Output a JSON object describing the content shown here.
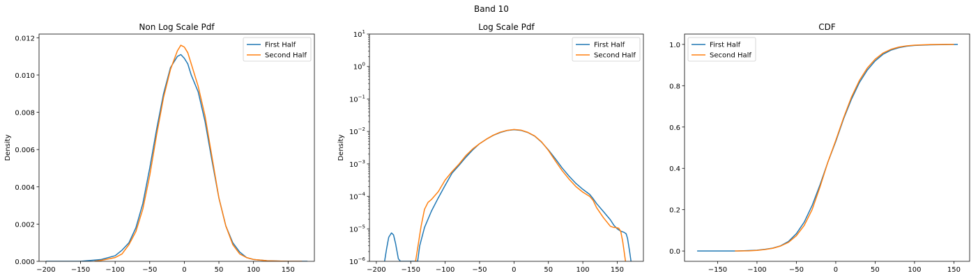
{
  "figure": {
    "suptitle": "Band 10"
  },
  "colors": {
    "first_half": "#1f77b4",
    "second_half": "#ff7f0e"
  },
  "chart_data": [
    {
      "type": "line",
      "title": "Non Log Scale Pdf",
      "xlabel": "",
      "ylabel": "Density",
      "xlim": [
        -210,
        188
      ],
      "ylim": [
        0,
        0.0122
      ],
      "yscale": "linear",
      "xticks": [
        -200,
        -150,
        -100,
        -50,
        0,
        50,
        100,
        150
      ],
      "yticks": [
        0,
        0.002,
        0.004,
        0.006,
        0.008,
        0.01,
        0.012
      ],
      "ytick_labels": [
        "0.000",
        "0.002",
        "0.004",
        "0.006",
        "0.008",
        "0.010",
        "0.012"
      ],
      "legend": "top-right",
      "series": [
        {
          "name": "First Half",
          "color": "#1f77b4",
          "x": [
            -200,
            -150,
            -120,
            -100,
            -90,
            -80,
            -70,
            -60,
            -50,
            -40,
            -30,
            -20,
            -10,
            -5,
            0,
            5,
            10,
            20,
            30,
            40,
            50,
            60,
            70,
            80,
            90,
            100,
            120,
            150,
            178
          ],
          "y": [
            0.0,
            0.0,
            0.0001,
            0.0003,
            0.0006,
            0.001,
            0.0018,
            0.0031,
            0.005,
            0.0071,
            0.009,
            0.0104,
            0.011,
            0.0111,
            0.0109,
            0.0106,
            0.01,
            0.0091,
            0.0075,
            0.0054,
            0.0034,
            0.0019,
            0.001,
            0.0005,
            0.0002,
            0.0001,
            3e-05,
            0.0,
            0.0
          ]
        },
        {
          "name": "Second Half",
          "color": "#ff7f0e",
          "x": [
            -130,
            -120,
            -100,
            -90,
            -80,
            -70,
            -60,
            -50,
            -40,
            -30,
            -20,
            -10,
            -5,
            0,
            5,
            10,
            20,
            30,
            40,
            50,
            60,
            70,
            80,
            90,
            100,
            120,
            150,
            170
          ],
          "y": [
            0.0,
            5e-05,
            0.0002,
            0.0004,
            0.0009,
            0.0016,
            0.0028,
            0.0046,
            0.0068,
            0.0088,
            0.0103,
            0.0113,
            0.0116,
            0.0115,
            0.0112,
            0.0106,
            0.0094,
            0.0078,
            0.0056,
            0.0034,
            0.0019,
            0.0009,
            0.0004,
            0.0002,
            0.0001,
            3e-05,
            0.0,
            0.0
          ]
        }
      ]
    },
    {
      "type": "line",
      "title": "Log Scale Pdf",
      "xlabel": "",
      "ylabel": "Density",
      "xlim": [
        -210,
        188
      ],
      "ylim": [
        1e-06,
        10
      ],
      "yscale": "log",
      "xticks": [
        -200,
        -150,
        -100,
        -50,
        0,
        50,
        100,
        150
      ],
      "ytick_exponents": [
        -6,
        -5,
        -4,
        -3,
        -2,
        -1,
        0,
        1
      ],
      "ytick_base": "10",
      "legend": "top-right",
      "series": [
        {
          "name": "First Half",
          "color": "#1f77b4",
          "x": [
            -188,
            -185,
            -182,
            -178,
            -175,
            -172,
            -168,
            -165,
            -140,
            -137,
            -130,
            -120,
            -110,
            -100,
            -90,
            -80,
            -70,
            -60,
            -50,
            -40,
            -30,
            -20,
            -10,
            0,
            10,
            20,
            30,
            40,
            50,
            60,
            70,
            80,
            90,
            100,
            110,
            115,
            120,
            130,
            140,
            145,
            150,
            155,
            160,
            163,
            165,
            168,
            170
          ],
          "y": [
            1e-06,
            2.5e-06,
            5.5e-06,
            7.5e-06,
            6.5e-06,
            3.5e-06,
            1.2e-06,
            1e-06,
            1e-06,
            3e-06,
            1.1e-05,
            3.5e-05,
            9e-05,
            0.00022,
            0.00052,
            0.0009,
            0.0016,
            0.0027,
            0.0042,
            0.0058,
            0.0076,
            0.0093,
            0.0107,
            0.0113,
            0.0108,
            0.0093,
            0.0072,
            0.0047,
            0.0027,
            0.00145,
            0.00075,
            0.00042,
            0.00025,
            0.000165,
            0.000115,
            8.5e-05,
            6e-05,
            3.4e-05,
            1.9e-05,
            1.3e-05,
            1e-05,
            8.5e-06,
            7.8e-06,
            7e-06,
            5e-06,
            2e-06,
            1e-06
          ]
        },
        {
          "name": "Second Half",
          "color": "#ff7f0e",
          "x": [
            -143,
            -140,
            -135,
            -130,
            -125,
            -120,
            -110,
            -100,
            -90,
            -80,
            -70,
            -60,
            -50,
            -40,
            -30,
            -20,
            -10,
            0,
            10,
            20,
            30,
            40,
            50,
            60,
            70,
            80,
            90,
            100,
            110,
            115,
            120,
            130,
            140,
            145,
            148,
            152,
            155,
            158,
            160,
            162
          ],
          "y": [
            1e-06,
            2.5e-06,
            1.2e-05,
            4e-05,
            6.5e-05,
            8e-05,
            0.00014,
            0.00032,
            0.00058,
            0.00098,
            0.0018,
            0.0029,
            0.0042,
            0.0058,
            0.0077,
            0.0095,
            0.0108,
            0.0115,
            0.011,
            0.0094,
            0.0073,
            0.0048,
            0.0026,
            0.00125,
            0.00062,
            0.00034,
            0.0002,
            0.000135,
            0.0001,
            7.5e-05,
            4.5e-05,
            2.2e-05,
            1.2e-05,
            1.1e-05,
            1.1e-05,
            1.05e-05,
            8.5e-06,
            4e-06,
            2e-06,
            1e-06
          ]
        }
      ]
    },
    {
      "type": "line",
      "title": "CDF",
      "xlabel": "",
      "ylabel": "",
      "xlim": [
        -192,
        170
      ],
      "ylim": [
        -0.05,
        1.05
      ],
      "yscale": "linear",
      "xticks": [
        -150,
        -100,
        -50,
        0,
        50,
        100,
        150
      ],
      "yticks": [
        0.0,
        0.2,
        0.4,
        0.6,
        0.8,
        1.0
      ],
      "ytick_labels": [
        "0.0",
        "0.2",
        "0.4",
        "0.6",
        "0.8",
        "1.0"
      ],
      "legend": "top-left",
      "series": [
        {
          "name": "First Half",
          "color": "#1f77b4",
          "x": [
            -176,
            -150,
            -125,
            -100,
            -90,
            -80,
            -70,
            -60,
            -50,
            -40,
            -30,
            -20,
            -10,
            0,
            10,
            20,
            30,
            40,
            50,
            60,
            70,
            80,
            90,
            100,
            120,
            140,
            155
          ],
          "y": [
            0.0,
            0.0,
            0.0,
            0.004,
            0.008,
            0.014,
            0.025,
            0.046,
            0.084,
            0.14,
            0.22,
            0.32,
            0.43,
            0.53,
            0.64,
            0.735,
            0.815,
            0.875,
            0.92,
            0.952,
            0.972,
            0.984,
            0.991,
            0.995,
            0.998,
            0.999,
            1.0
          ]
        },
        {
          "name": "Second Half",
          "color": "#ff7f0e",
          "x": [
            -128,
            -110,
            -100,
            -90,
            -80,
            -70,
            -60,
            -50,
            -40,
            -30,
            -20,
            -10,
            0,
            10,
            20,
            30,
            40,
            50,
            60,
            70,
            80,
            90,
            100,
            120,
            140,
            150
          ],
          "y": [
            0.0,
            0.001,
            0.003,
            0.007,
            0.013,
            0.024,
            0.042,
            0.074,
            0.124,
            0.2,
            0.31,
            0.43,
            0.535,
            0.645,
            0.745,
            0.825,
            0.885,
            0.928,
            0.958,
            0.976,
            0.987,
            0.993,
            0.996,
            0.999,
            1.0,
            1.0
          ]
        }
      ]
    }
  ]
}
